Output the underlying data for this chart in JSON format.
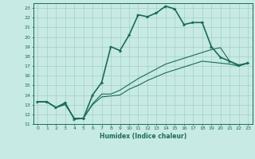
{
  "xlabel": "Humidex (Indice chaleur)",
  "bg_color": "#c8eae4",
  "grid_color": "#a0cfc8",
  "line_color": "#1a6b5a",
  "xlim": [
    -0.5,
    23.5
  ],
  "ylim": [
    11,
    23.5
  ],
  "yticks": [
    11,
    12,
    13,
    14,
    15,
    16,
    17,
    18,
    19,
    20,
    21,
    22,
    23
  ],
  "xticks": [
    0,
    1,
    2,
    3,
    4,
    5,
    6,
    7,
    8,
    9,
    10,
    11,
    12,
    13,
    14,
    15,
    16,
    17,
    18,
    19,
    20,
    21,
    22,
    23
  ],
  "series": [
    {
      "x": [
        0,
        1,
        2,
        3,
        4,
        5,
        6,
        7,
        8,
        9,
        10,
        11,
        12,
        13,
        14,
        15,
        16,
        17,
        18,
        19,
        20,
        21,
        22,
        23
      ],
      "y": [
        13.3,
        13.3,
        12.7,
        13.2,
        11.5,
        11.6,
        14.0,
        15.3,
        19.0,
        18.6,
        20.2,
        22.3,
        22.1,
        22.5,
        23.2,
        22.9,
        21.3,
        21.5,
        21.5,
        19.0,
        17.9,
        17.5,
        17.1,
        17.3
      ],
      "marker": true,
      "linewidth": 1.2
    },
    {
      "x": [
        0,
        1,
        2,
        3,
        4,
        5,
        6,
        7,
        8,
        9,
        10,
        11,
        12,
        13,
        14,
        15,
        16,
        17,
        18,
        19,
        20,
        21,
        22,
        23
      ],
      "y": [
        13.3,
        13.3,
        12.7,
        13.1,
        11.6,
        11.6,
        13.1,
        14.1,
        14.1,
        14.5,
        15.1,
        15.7,
        16.2,
        16.7,
        17.2,
        17.5,
        17.8,
        18.1,
        18.4,
        18.7,
        18.9,
        17.5,
        17.0,
        17.3
      ],
      "marker": false,
      "linewidth": 0.8
    },
    {
      "x": [
        0,
        1,
        2,
        3,
        4,
        5,
        6,
        7,
        8,
        9,
        10,
        11,
        12,
        13,
        14,
        15,
        16,
        17,
        18,
        19,
        20,
        21,
        22,
        23
      ],
      "y": [
        13.3,
        13.3,
        12.7,
        13.0,
        11.6,
        11.6,
        13.0,
        13.8,
        13.9,
        14.0,
        14.6,
        15.0,
        15.5,
        15.9,
        16.3,
        16.6,
        16.9,
        17.2,
        17.5,
        17.4,
        17.3,
        17.2,
        17.0,
        17.3
      ],
      "marker": false,
      "linewidth": 0.8
    }
  ]
}
